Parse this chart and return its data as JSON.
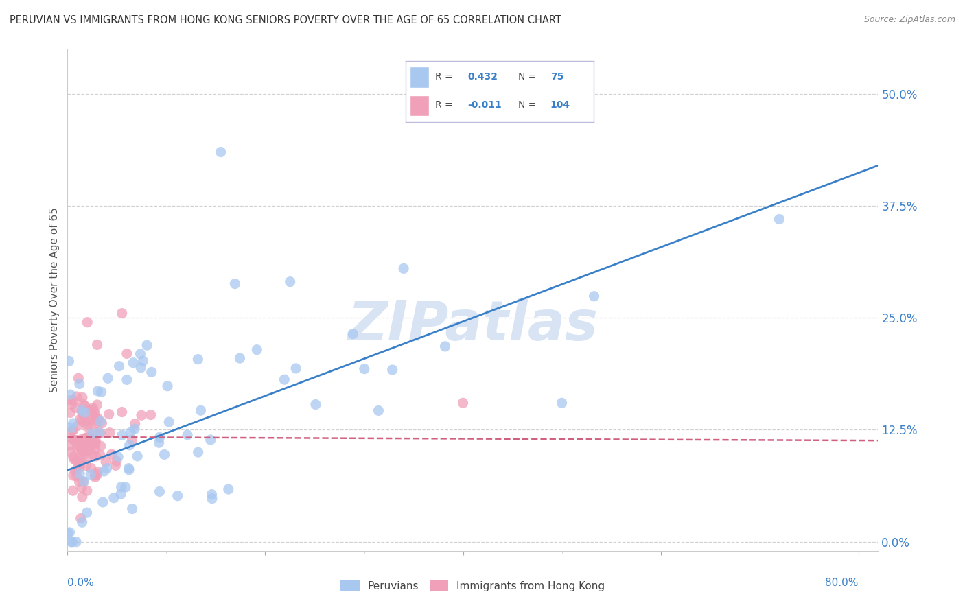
{
  "title": "PERUVIAN VS IMMIGRANTS FROM HONG KONG SENIORS POVERTY OVER THE AGE OF 65 CORRELATION CHART",
  "source": "Source: ZipAtlas.com",
  "ylabel_label": "Seniors Poverty Over the Age of 65",
  "xlim": [
    0.0,
    0.82
  ],
  "ylim": [
    -0.01,
    0.55
  ],
  "ytick_vals": [
    0.0,
    0.125,
    0.25,
    0.375,
    0.5
  ],
  "ytick_labels": [
    "0.0%",
    "12.5%",
    "25.0%",
    "37.5%",
    "50.0%"
  ],
  "xtick_vals": [
    0.0,
    0.2,
    0.4,
    0.6,
    0.8
  ],
  "xtick_labels": [
    "",
    "",
    "",
    "",
    ""
  ],
  "blue_R": 0.432,
  "blue_N": 75,
  "pink_R": -0.011,
  "pink_N": 104,
  "blue_color": "#A8C8F0",
  "pink_color": "#F0A0B8",
  "blue_line_color": "#3A80C8",
  "pink_line_color": "#D06080",
  "blue_tick_color": "#3A80C8",
  "legend_text_color": "#3A80C8",
  "watermark_color": "#D8E4F4",
  "background_color": "#FFFFFF",
  "grid_color": "#CCCCCC",
  "title_color": "#333333",
  "source_color": "#888888",
  "blue_line_y0": 0.08,
  "blue_line_y1": 0.42,
  "pink_line_y0": 0.117,
  "pink_line_y1": 0.113
}
